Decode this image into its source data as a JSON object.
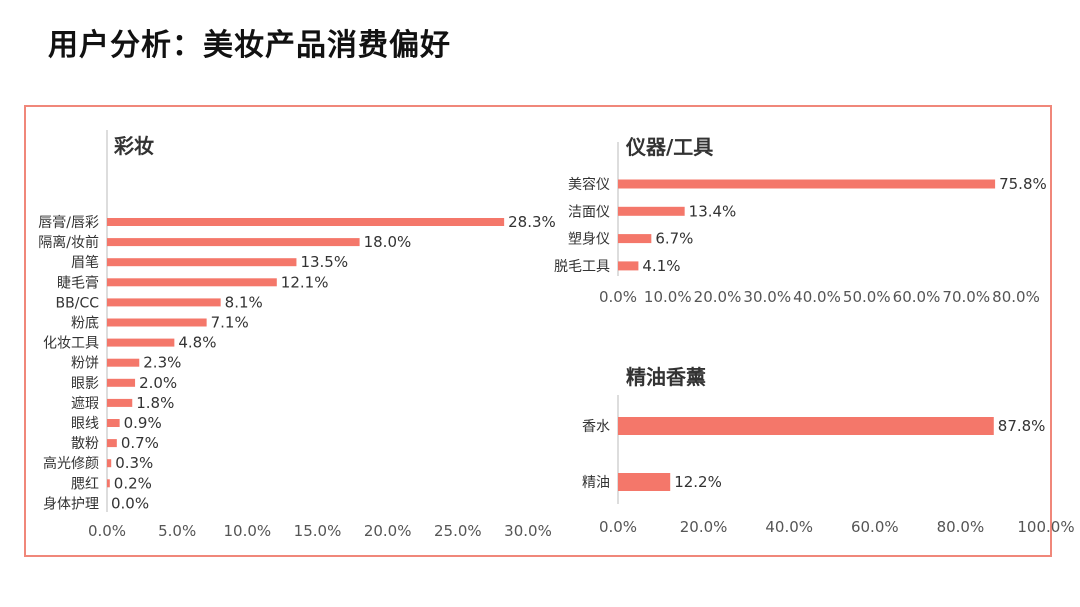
{
  "page": {
    "title": "用户分析：美妆产品消费偏好"
  },
  "colors": {
    "bar": "#f4776a",
    "frame": "#f0877a",
    "axis": "#bbbbbb"
  },
  "chart_data": [
    {
      "type": "bar",
      "orientation": "horizontal",
      "title": "彩妆",
      "categories": [
        "唇膏/唇彩",
        "隔离/妆前",
        "眉笔",
        "睫毛膏",
        "BB/CC",
        "粉底",
        "化妆工具",
        "粉饼",
        "眼影",
        "遮瑕",
        "眼线",
        "散粉",
        "高光修颜",
        "腮红",
        "身体护理"
      ],
      "values": [
        28.3,
        18.0,
        13.5,
        12.1,
        8.1,
        7.1,
        4.8,
        2.3,
        2.0,
        1.8,
        0.9,
        0.7,
        0.3,
        0.2,
        0.0
      ],
      "value_labels": [
        "28.3%",
        "18.0%",
        "13.5%",
        "12.1%",
        "8.1%",
        "7.1%",
        "4.8%",
        "2.3%",
        "2.0%",
        "1.8%",
        "0.9%",
        "0.7%",
        "0.3%",
        "0.2%",
        "0.0%"
      ],
      "xlim": [
        0,
        30
      ],
      "ticks": [
        0,
        5,
        10,
        15,
        20,
        25,
        30
      ],
      "tick_labels": [
        "0.0%",
        "5.0%",
        "10.0%",
        "15.0%",
        "20.0%",
        "25.0%",
        "30.0%"
      ]
    },
    {
      "type": "bar",
      "orientation": "horizontal",
      "title": "仪器/工具",
      "categories": [
        "美容仪",
        "洁面仪",
        "塑身仪",
        "脱毛工具"
      ],
      "values": [
        75.8,
        13.4,
        6.7,
        4.1
      ],
      "value_labels": [
        "75.8%",
        "13.4%",
        "6.7%",
        "4.1%"
      ],
      "xlim": [
        0,
        80
      ],
      "ticks": [
        0,
        10,
        20,
        30,
        40,
        50,
        60,
        70,
        80
      ],
      "tick_labels": [
        "0.0%",
        "10.0%",
        "20.0%",
        "30.0%",
        "40.0%",
        "50.0%",
        "60.0%",
        "70.0%",
        "80.0%"
      ]
    },
    {
      "type": "bar",
      "orientation": "horizontal",
      "title": "精油香薰",
      "categories": [
        "香水",
        "精油"
      ],
      "values": [
        87.8,
        12.2
      ],
      "value_labels": [
        "87.8%",
        "12.2%"
      ],
      "xlim": [
        0,
        100
      ],
      "ticks": [
        0,
        20,
        40,
        60,
        80,
        100
      ],
      "tick_labels": [
        "0.0%",
        "20.0%",
        "40.0%",
        "60.0%",
        "80.0%",
        "100.0%"
      ]
    }
  ]
}
